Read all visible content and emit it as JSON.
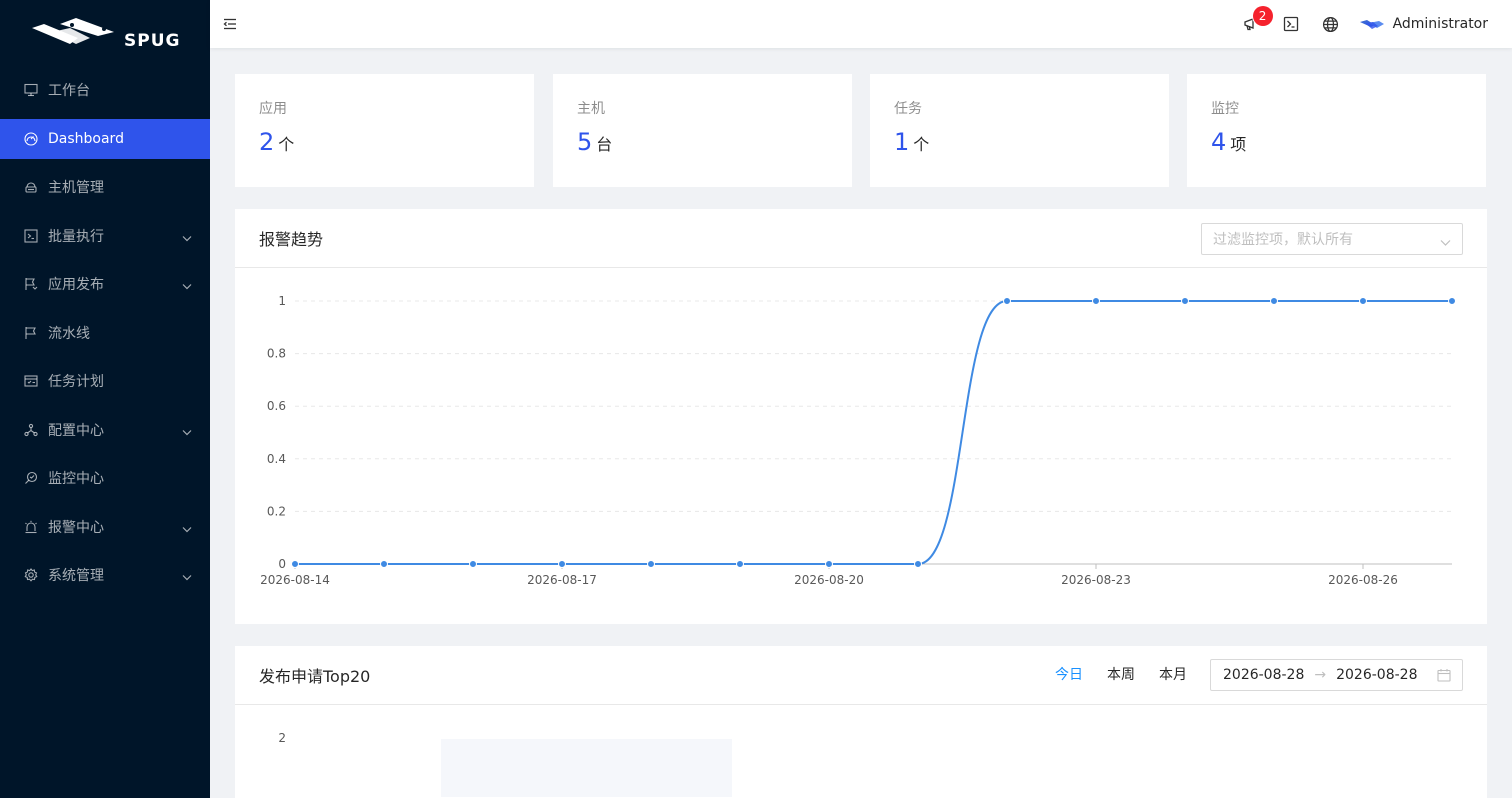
{
  "brand": {
    "name": "SPUG"
  },
  "sidebar": {
    "items": [
      {
        "label": "工作台",
        "icon": "desktop-icon",
        "has_children": false,
        "active": false
      },
      {
        "label": "Dashboard",
        "icon": "dashboard-icon",
        "has_children": false,
        "active": true
      },
      {
        "label": "主机管理",
        "icon": "cloud-server-icon",
        "has_children": false,
        "active": false
      },
      {
        "label": "批量执行",
        "icon": "code-icon",
        "has_children": true,
        "active": false
      },
      {
        "label": "应用发布",
        "icon": "flag-icon",
        "has_children": true,
        "active": false
      },
      {
        "label": "流水线",
        "icon": "flag-outline-icon",
        "has_children": false,
        "active": false
      },
      {
        "label": "任务计划",
        "icon": "schedule-icon",
        "has_children": false,
        "active": false
      },
      {
        "label": "配置中心",
        "icon": "deployment-unit-icon",
        "has_children": true,
        "active": false
      },
      {
        "label": "监控中心",
        "icon": "monitor-icon",
        "has_children": false,
        "active": false
      },
      {
        "label": "报警中心",
        "icon": "alert-icon",
        "has_children": true,
        "active": false
      },
      {
        "label": "系统管理",
        "icon": "setting-icon",
        "has_children": true,
        "active": false
      }
    ]
  },
  "header": {
    "notification_count": "2",
    "user_name": "Administrator"
  },
  "stats": [
    {
      "title": "应用",
      "value": "2",
      "unit": "个"
    },
    {
      "title": "主机",
      "value": "5",
      "unit": "台"
    },
    {
      "title": "任务",
      "value": "1",
      "unit": "个"
    },
    {
      "title": "监控",
      "value": "4",
      "unit": "项"
    }
  ],
  "alarm_card": {
    "title": "报警趋势",
    "filter_placeholder": "过滤监控项，默认所有"
  },
  "deploy_card": {
    "title": "发布申请Top20",
    "tabs": [
      "今日",
      "本周",
      "本月"
    ],
    "active_tab": 0,
    "range_start": "2026-08-28",
    "range_end": "2026-08-28",
    "range_sep": "→"
  },
  "chart_data": [
    {
      "type": "line",
      "x": [
        "2026-08-14",
        "2026-08-15",
        "2026-08-16",
        "2026-08-17",
        "2026-08-18",
        "2026-08-19",
        "2026-08-20",
        "2026-08-21",
        "2026-08-22",
        "2026-08-23",
        "2026-08-24",
        "2026-08-25",
        "2026-08-26",
        "2026-08-27"
      ],
      "values": [
        0,
        0,
        0,
        0,
        0,
        0,
        0,
        0,
        1,
        1,
        1,
        1,
        1,
        1
      ],
      "x_tick_labels": [
        "2026-08-14",
        "2026-08-17",
        "2026-08-20",
        "2026-08-23",
        "2026-08-26"
      ],
      "y_ticks": [
        "0",
        "0.2",
        "0.4",
        "0.6",
        "0.8",
        "1"
      ],
      "ylim": [
        0,
        1
      ],
      "grid": true,
      "color": "#3f8ae3"
    },
    {
      "type": "bar",
      "y_ticks": [
        "2"
      ]
    }
  ]
}
